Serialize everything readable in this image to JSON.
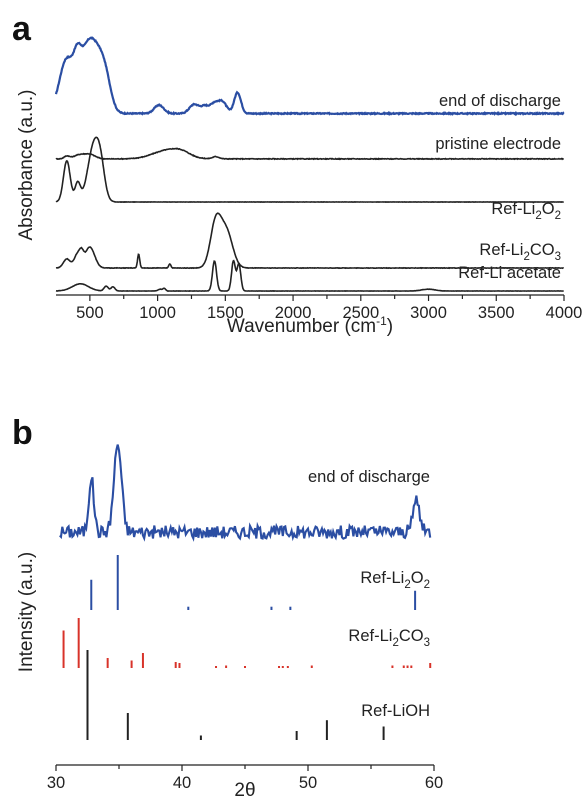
{
  "colors": {
    "blue": "#2b4ea3",
    "black": "#222222",
    "red": "#d8332a"
  },
  "chart_data": [
    {
      "panel": "a",
      "type": "line",
      "xlabel": "Wavenumber (cm⁻¹)",
      "ylabel": "Absorbance (a.u.)",
      "xlim": [
        250,
        4000
      ],
      "xticks": [
        500,
        1000,
        1500,
        2000,
        2500,
        3000,
        3500,
        4000
      ],
      "grid": false,
      "series": [
        {
          "name": "end of discharge",
          "color": "#2b4ea3",
          "baseline": 0.05,
          "peaks": [
            [
              330,
              0.78,
              55
            ],
            [
              410,
              0.5,
              30
            ],
            [
              470,
              0.45,
              40
            ],
            [
              540,
              0.9,
              60
            ],
            [
              620,
              0.3,
              40
            ],
            [
              1010,
              0.12,
              35
            ],
            [
              1270,
              0.13,
              35
            ],
            [
              1350,
              0.1,
              30
            ],
            [
              1420,
              0.14,
              30
            ],
            [
              1480,
              0.16,
              30
            ],
            [
              1590,
              0.3,
              25
            ]
          ],
          "noise": 0.015
        },
        {
          "name": "pristine electrode",
          "color": "#222222",
          "baseline": 0.02,
          "peaks": [
            [
              330,
              0.05,
              20
            ],
            [
              420,
              0.07,
              40
            ],
            [
              500,
              0.08,
              40
            ],
            [
              1080,
              0.16,
              110
            ],
            [
              1180,
              0.06,
              60
            ],
            [
              1430,
              0.04,
              25
            ]
          ],
          "noise": 0.012
        },
        {
          "name": "Ref-Li₂O₂",
          "color": "#222222",
          "baseline": 0.0,
          "peaks": [
            [
              330,
              0.55,
              25
            ],
            [
              410,
              0.25,
              20
            ],
            [
              530,
              0.75,
              45
            ],
            [
              580,
              0.3,
              30
            ]
          ],
          "noise": 0.004
        },
        {
          "name": "Ref-Li₂CO₃",
          "color": "#222222",
          "baseline": 0.0,
          "peaks": [
            [
              330,
              0.13,
              25
            ],
            [
              410,
              0.2,
              25
            ],
            [
              440,
              0.12,
              15
            ],
            [
              500,
              0.3,
              35
            ],
            [
              860,
              0.2,
              8
            ],
            [
              1090,
              0.06,
              8
            ],
            [
              1430,
              0.65,
              40
            ],
            [
              1510,
              0.5,
              45
            ]
          ],
          "noise": 0.006
        },
        {
          "name": "Ref-Li acetate",
          "color": "#222222",
          "baseline": 0.0,
          "peaks": [
            [
              430,
              0.12,
              60
            ],
            [
              620,
              0.08,
              15
            ],
            [
              670,
              0.07,
              15
            ],
            [
              1020,
              0.03,
              15
            ],
            [
              1050,
              0.04,
              10
            ],
            [
              1420,
              0.5,
              15
            ],
            [
              1560,
              0.5,
              14
            ],
            [
              1600,
              0.45,
              14
            ],
            [
              3000,
              0.03,
              50
            ]
          ],
          "noise": 0.004
        }
      ]
    },
    {
      "panel": "b",
      "type": "line",
      "xlabel": "2θ",
      "ylabel": "Intensity (a.u.)",
      "xlim": [
        30,
        60
      ],
      "xticks": [
        30,
        40,
        50,
        60
      ],
      "grid": false,
      "series": [
        {
          "name": "end of discharge",
          "color": "#2b4ea3",
          "peaks": [
            [
              32.8,
              0.5,
              0.2
            ],
            [
              34.9,
              0.8,
              0.3
            ],
            [
              58.6,
              0.3,
              0.25
            ]
          ],
          "noise": 0.06
        },
        {
          "name": "Ref-Li₂O₂",
          "color": "#2b4ea3",
          "type": "stick",
          "sticks": [
            [
              32.8,
              0.55
            ],
            [
              34.9,
              1.0
            ],
            [
              40.5,
              0.06
            ],
            [
              47.1,
              0.06
            ],
            [
              48.6,
              0.06
            ],
            [
              58.5,
              0.35
            ]
          ]
        },
        {
          "name": "Ref-Li₂CO₃",
          "color": "#d8332a",
          "type": "stick",
          "sticks": [
            [
              30.6,
              0.75
            ],
            [
              31.8,
              1.0
            ],
            [
              34.1,
              0.2
            ],
            [
              36.0,
              0.15
            ],
            [
              36.9,
              0.3
            ],
            [
              39.5,
              0.12
            ],
            [
              39.8,
              0.1
            ],
            [
              42.7,
              0.03
            ],
            [
              43.5,
              0.05
            ],
            [
              45.0,
              0.03
            ],
            [
              47.7,
              0.03
            ],
            [
              48.0,
              0.03
            ],
            [
              48.4,
              0.03
            ],
            [
              50.3,
              0.05
            ],
            [
              56.7,
              0.05
            ],
            [
              57.6,
              0.05
            ],
            [
              57.9,
              0.05
            ],
            [
              58.2,
              0.05
            ],
            [
              59.7,
              0.1
            ]
          ]
        },
        {
          "name": "Ref-LiOH",
          "color": "#222222",
          "type": "stick",
          "sticks": [
            [
              32.5,
              1.0
            ],
            [
              35.7,
              0.3
            ],
            [
              41.5,
              0.05
            ],
            [
              49.1,
              0.1
            ],
            [
              51.5,
              0.22
            ],
            [
              56.0,
              0.15
            ]
          ]
        }
      ]
    }
  ]
}
